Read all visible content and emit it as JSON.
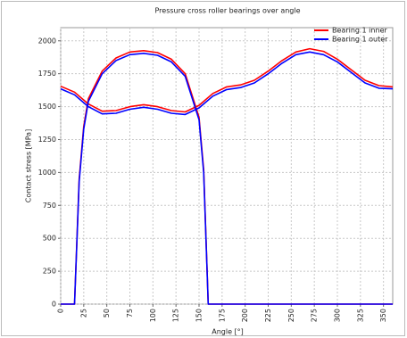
{
  "chart_data": {
    "type": "line",
    "title": "Pressure cross roller bearings over angle",
    "xlabel": "Angle [°]",
    "ylabel": "Contact stress [MPa]",
    "x": [
      0,
      15,
      30,
      45,
      60,
      75,
      90,
      105,
      120,
      135,
      150,
      165,
      180,
      195,
      210,
      225,
      240,
      255,
      270,
      285,
      300,
      315,
      330,
      345,
      360,
      null,
      0,
      15,
      20,
      25,
      30,
      45,
      60,
      75,
      90,
      105,
      120,
      135,
      150,
      155,
      160,
      360
    ],
    "series": [
      {
        "name": "Bearing 1 inner",
        "color": "#ff0000",
        "values": [
          1655,
          1610,
          1520,
          1465,
          1470,
          1500,
          1515,
          1500,
          1470,
          1460,
          1510,
          1600,
          1650,
          1665,
          1700,
          1770,
          1850,
          1915,
          1940,
          1920,
          1860,
          1780,
          1700,
          1660,
          1650,
          null,
          0,
          0,
          950,
          1350,
          1560,
          1770,
          1870,
          1915,
          1925,
          1910,
          1860,
          1750,
          1420,
          1020,
          0,
          0
        ]
      },
      {
        "name": "Bearing 1 outer",
        "color": "#0000ff",
        "values": [
          1635,
          1590,
          1500,
          1445,
          1450,
          1480,
          1495,
          1480,
          1450,
          1440,
          1490,
          1580,
          1630,
          1645,
          1680,
          1750,
          1830,
          1895,
          1915,
          1895,
          1840,
          1760,
          1680,
          1640,
          1635,
          null,
          0,
          0,
          930,
          1330,
          1540,
          1750,
          1850,
          1895,
          1905,
          1890,
          1840,
          1730,
          1400,
          1000,
          0,
          0
        ]
      }
    ],
    "xlim": [
      0,
      360
    ],
    "xticks": [
      0,
      25,
      50,
      75,
      100,
      125,
      150,
      175,
      200,
      225,
      250,
      275,
      300,
      325,
      350
    ],
    "ylim": [
      0,
      2100
    ],
    "yticks": [
      0,
      250,
      500,
      750,
      1000,
      1250,
      1500,
      1750,
      2000
    ],
    "grid": true,
    "legend": "upper right"
  }
}
